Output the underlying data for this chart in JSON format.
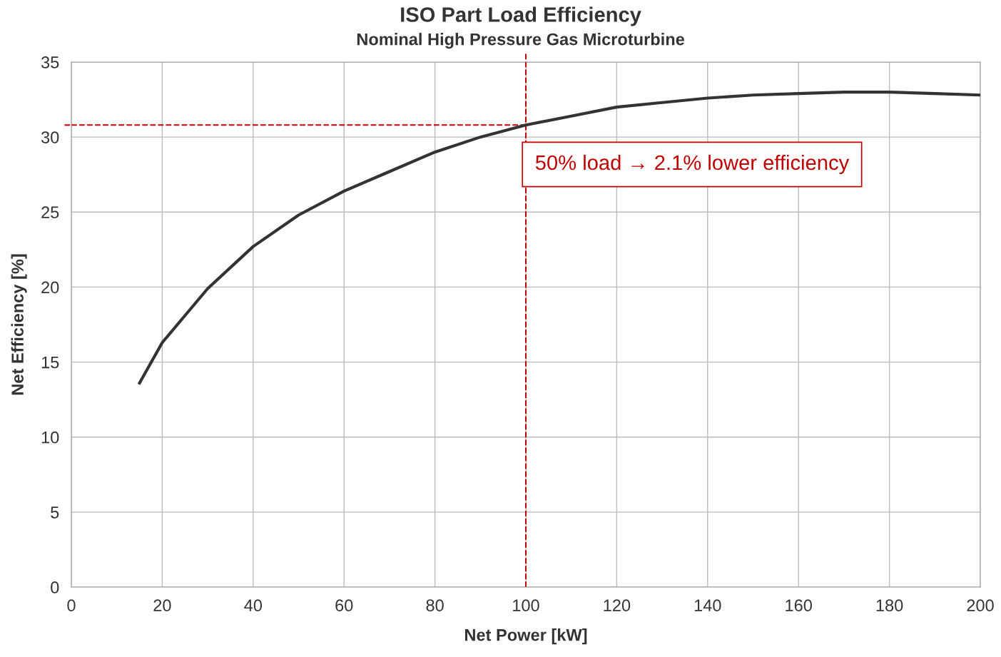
{
  "chart_data": {
    "type": "line",
    "title": "ISO Part Load Efficiency",
    "subtitle": "Nominal High Pressure Gas Microturbine",
    "xlabel": "Net Power [kW]",
    "ylabel": "Net Efficiency [%]",
    "x": [
      15,
      20,
      30,
      40,
      50,
      60,
      70,
      80,
      90,
      100,
      110,
      120,
      130,
      140,
      150,
      160,
      170,
      180,
      190,
      200
    ],
    "series": [
      {
        "color": "#333333",
        "values": [
          13.6,
          16.3,
          19.9,
          22.7,
          24.8,
          26.4,
          27.7,
          29.0,
          30.0,
          30.8,
          31.4,
          32.0,
          32.3,
          32.6,
          32.8,
          32.9,
          33.0,
          33.0,
          32.9,
          32.8
        ]
      }
    ],
    "xlim": [
      0,
      200
    ],
    "xticks": [
      0,
      20,
      40,
      60,
      80,
      100,
      120,
      140,
      160,
      180,
      200
    ],
    "ylim": [
      0,
      35
    ],
    "yticks": [
      0,
      5,
      10,
      15,
      20,
      25,
      30,
      35
    ],
    "grid": true,
    "legend": false,
    "marker": "none",
    "line_style": "solid",
    "ref_lines": [
      {
        "axis": "y",
        "value": 30.8,
        "color": "#c00000",
        "line_style": "dashed"
      },
      {
        "axis": "x",
        "value": 100,
        "color": "#c00000",
        "line_style": "dashed"
      }
    ],
    "annotations": [
      "50% load → 2.1% lower efficiency"
    ]
  }
}
